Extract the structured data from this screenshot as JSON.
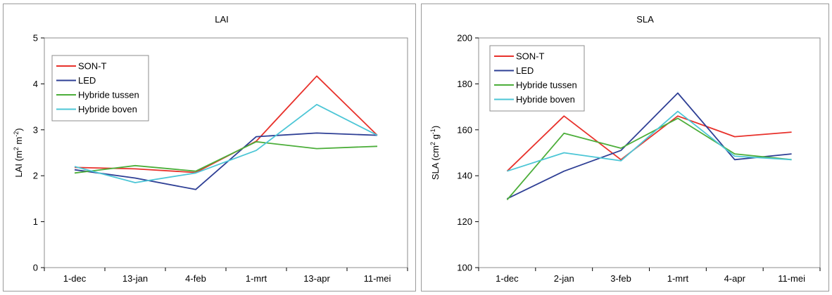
{
  "chart_data": [
    {
      "type": "line",
      "title": "LAI",
      "ylabel": "LAI (m2 m-2)",
      "ylabel_parts": {
        "base": "LAI (m",
        "sup1": "2",
        "mid": " m",
        "sup2": "-2",
        "end": ")"
      },
      "categories": [
        "1-dec",
        "13-jan",
        "4-feb",
        "1-mrt",
        "13-apr",
        "11-mei"
      ],
      "ylim": [
        0,
        5
      ],
      "yticks": [
        "0",
        "1",
        "2",
        "3",
        "4",
        "5"
      ],
      "legend_position": "top-left",
      "series": [
        {
          "name": "SON-T",
          "color": "#e8312b",
          "values": [
            2.18,
            2.15,
            2.07,
            2.75,
            4.17,
            2.88
          ]
        },
        {
          "name": "LED",
          "color": "#2e3f95",
          "values": [
            2.13,
            1.95,
            1.7,
            2.85,
            2.93,
            2.88
          ]
        },
        {
          "name": "Hybride tussen",
          "color": "#4cae3a",
          "values": [
            2.06,
            2.22,
            2.1,
            2.74,
            2.59,
            2.64
          ]
        },
        {
          "name": "Hybride boven",
          "color": "#4cc6d6",
          "values": [
            2.2,
            1.85,
            2.06,
            2.55,
            3.55,
            2.88
          ]
        }
      ]
    },
    {
      "type": "line",
      "title": "SLA",
      "ylabel": "SLA (cm2 g-1)",
      "ylabel_parts": {
        "base": "SLA (cm",
        "sup1": "2",
        "mid": " g",
        "sup2": "-1",
        "end": ")"
      },
      "categories": [
        "1-dec",
        "2-jan",
        "3-feb",
        "1-mrt",
        "4-apr",
        "11-mei"
      ],
      "ylim": [
        100,
        200
      ],
      "yticks": [
        "100",
        "120",
        "140",
        "160",
        "180",
        "200"
      ],
      "legend_position": "top-left",
      "series": [
        {
          "name": "SON-T",
          "color": "#e8312b",
          "values": [
            142,
            166,
            147,
            166,
            157,
            159
          ]
        },
        {
          "name": "LED",
          "color": "#2e3f95",
          "values": [
            130,
            142,
            151,
            176,
            147,
            149.5
          ]
        },
        {
          "name": "Hybride tussen",
          "color": "#4cae3a",
          "values": [
            129.5,
            158.5,
            152,
            165,
            149.5,
            147
          ]
        },
        {
          "name": "Hybride boven",
          "color": "#4cc6d6",
          "values": [
            142,
            150,
            146.5,
            168,
            148.5,
            147
          ]
        }
      ]
    }
  ]
}
